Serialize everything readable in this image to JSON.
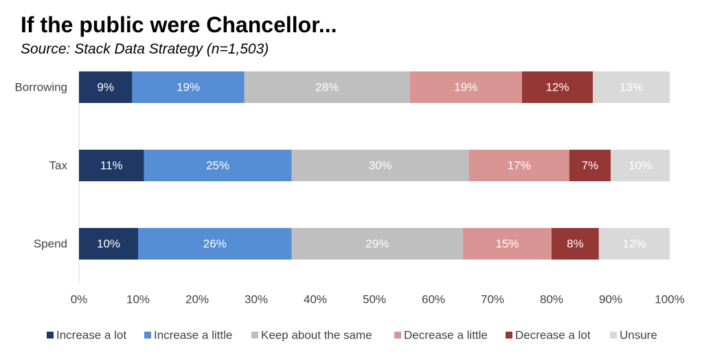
{
  "chart_data": {
    "type": "bar",
    "orientation": "horizontal",
    "stacked": true,
    "title": "If the public were Chancellor...",
    "subtitle": "Source: Stack Data Strategy (n=1,503)",
    "categories": [
      "Borrowing",
      "Tax",
      "Spend"
    ],
    "series": [
      {
        "name": "Increase a lot",
        "color": "#1f3864",
        "values": [
          9,
          11,
          10
        ],
        "labels": [
          "9%",
          "11%",
          "10%"
        ]
      },
      {
        "name": "Increase a little",
        "color": "#558ed5",
        "values": [
          19,
          25,
          26
        ],
        "labels": [
          "19%",
          "25%",
          "26%"
        ]
      },
      {
        "name": "Keep about the same",
        "color": "#bfbfbf",
        "values": [
          28,
          30,
          29
        ],
        "labels": [
          "28%",
          "30%",
          "29%"
        ]
      },
      {
        "name": "Decrease a little",
        "color": "#d99594",
        "values": [
          19,
          17,
          15
        ],
        "labels": [
          "19%",
          "17%",
          "15%"
        ]
      },
      {
        "name": "Decrease a lot",
        "color": "#953735",
        "values": [
          12,
          7,
          8
        ],
        "labels": [
          "12%",
          "7%",
          "8%"
        ]
      },
      {
        "name": "Unsure",
        "color": "#d9d9d9",
        "values": [
          13,
          10,
          12
        ],
        "labels": [
          "13%",
          "10%",
          "12%"
        ]
      }
    ],
    "xlim": [
      0,
      100
    ],
    "xticks": [
      "0%",
      "10%",
      "20%",
      "30%",
      "40%",
      "50%",
      "60%",
      "70%",
      "80%",
      "90%",
      "100%"
    ],
    "xlabel": "",
    "ylabel": "",
    "grid": false,
    "legend_position": "bottom"
  }
}
